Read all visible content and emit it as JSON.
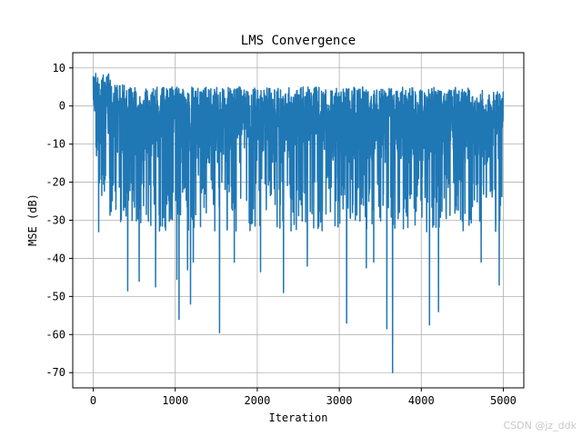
{
  "chart_data": {
    "type": "line",
    "title": "LMS Convergence",
    "xlabel": "Iteration",
    "ylabel": "MSE (dB)",
    "xlim": [
      -250,
      5250
    ],
    "ylim": [
      -74,
      14
    ],
    "x_ticks": [
      0,
      1000,
      2000,
      3000,
      4000,
      5000
    ],
    "y_ticks": [
      10,
      0,
      -10,
      -20,
      -30,
      -40,
      -50,
      -60,
      -70
    ],
    "grid": true,
    "line_color": "#1f77b4",
    "n_points": 5000,
    "envelope": {
      "x": [
        0,
        50,
        100,
        150,
        200,
        250,
        500,
        1000,
        1500,
        2000,
        2500,
        3000,
        3500,
        4000,
        4500,
        5000
      ],
      "upper": [
        8,
        9,
        9,
        9,
        9,
        6,
        5,
        5,
        5,
        5,
        5,
        5,
        5,
        5,
        5,
        4
      ],
      "lower": [
        -5,
        -10,
        -33,
        -20,
        -29,
        -35,
        -49,
        -56,
        -60,
        -43,
        -49,
        -57,
        -70,
        -58,
        -47,
        -30
      ]
    },
    "spikes": [
      {
        "x": 65,
        "y": -33
      },
      {
        "x": 420,
        "y": -48.5
      },
      {
        "x": 560,
        "y": -46
      },
      {
        "x": 760,
        "y": -47.5
      },
      {
        "x": 1020,
        "y": -45.5
      },
      {
        "x": 1045,
        "y": -56
      },
      {
        "x": 1150,
        "y": -43
      },
      {
        "x": 1185,
        "y": -52
      },
      {
        "x": 1220,
        "y": -41
      },
      {
        "x": 1540,
        "y": -59.5
      },
      {
        "x": 1720,
        "y": -41
      },
      {
        "x": 2040,
        "y": -43.5
      },
      {
        "x": 2320,
        "y": -49
      },
      {
        "x": 2610,
        "y": -42
      },
      {
        "x": 3090,
        "y": -57
      },
      {
        "x": 3330,
        "y": -42.5
      },
      {
        "x": 3420,
        "y": -41
      },
      {
        "x": 3580,
        "y": -58.5
      },
      {
        "x": 3650,
        "y": -70
      },
      {
        "x": 4100,
        "y": -57.5
      },
      {
        "x": 4210,
        "y": -54
      },
      {
        "x": 4730,
        "y": -41
      },
      {
        "x": 4950,
        "y": -47
      }
    ]
  },
  "watermark": "CSDN @jz_ddk"
}
